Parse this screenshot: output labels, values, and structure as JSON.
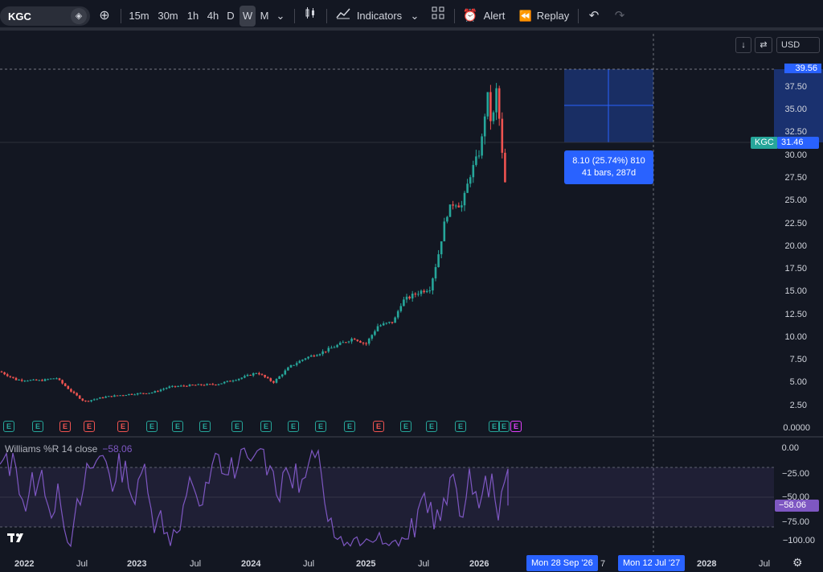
{
  "toolbar": {
    "symbol": "KGC",
    "intervals": [
      "15m",
      "30m",
      "1h",
      "4h",
      "D",
      "W",
      "M"
    ],
    "active_interval": "W",
    "indicators_label": "Indicators",
    "alert_label": "Alert",
    "replay_label": "Replay"
  },
  "axis_controls": {
    "currency": "USD"
  },
  "price_axis": {
    "labels": [
      "39.56",
      "37.50",
      "35.00",
      "32.50",
      "30.00",
      "27.50",
      "25.00",
      "22.50",
      "20.00",
      "17.50",
      "15.00",
      "12.50",
      "10.00",
      "7.50",
      "5.00",
      "2.50",
      "0.0000"
    ],
    "current_price": "31.46",
    "current_symbol_tag": "KGC"
  },
  "measure": {
    "line1": "8.10 (25.74%) 810",
    "line2": "41 bars, 287d"
  },
  "indicator": {
    "title": "Williams %R 14 close",
    "value": "−58.06",
    "axis_labels": [
      "0.00",
      "−25.00",
      "−50.00",
      "−75.00",
      "−100.00"
    ]
  },
  "time_axis": {
    "labels": [
      "2022",
      "Jul",
      "2023",
      "Jul",
      "2024",
      "Jul",
      "2025",
      "Jul",
      "2026",
      "7",
      "2028",
      "Jul"
    ],
    "range_start": "Mon 28 Sep '26",
    "range_end": "Mon 12 Jul '27"
  },
  "earnings_markers": [
    "E",
    "E",
    "E",
    "E",
    "E",
    "E",
    "E",
    "E",
    "E",
    "E",
    "E",
    "E",
    "E",
    "E",
    "E",
    "E",
    "E",
    "E",
    "E",
    "E"
  ],
  "colors": {
    "up": "#26a69a",
    "down": "#ef5350",
    "accent": "#2962ff",
    "indicator": "#7e57c2"
  }
}
